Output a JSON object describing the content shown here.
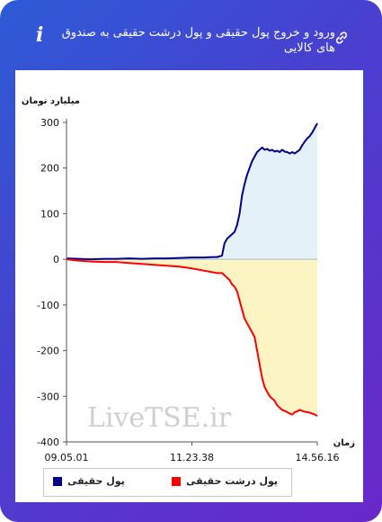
{
  "header": {
    "title": "ورود و خروج پول حقیقی و پول درشت حقیقی به صندوق های کالایی",
    "info_icon": "info-icon",
    "link_icon": "link-icon"
  },
  "colors": {
    "real_money": "#00008b",
    "big_real_money": "#ff0000",
    "positive_fill": "#e4f1f8",
    "negative_fill": "#fdf4c4",
    "frame_gradient": [
      "#2d5bd6",
      "#6a27c9"
    ]
  },
  "chart_data": {
    "type": "area",
    "ylabel": "میلیارد تومان",
    "xlabel": "زمان",
    "ylim": [
      -400,
      300
    ],
    "y_ticks": [
      300,
      200,
      100,
      0,
      -100,
      -200,
      -300,
      -400
    ],
    "x_tick_labels": [
      "09.05.01",
      "11.23.38",
      "14.56.16"
    ],
    "grid": false,
    "legend_position": "bottom",
    "watermark": "LiveTSE.ir",
    "x_index": [
      0,
      5,
      10,
      15,
      20,
      25,
      30,
      35,
      40,
      45,
      50,
      55,
      58,
      60,
      62,
      63,
      64,
      65,
      66,
      67,
      68,
      69,
      70,
      71,
      72,
      73,
      74,
      75,
      76,
      77,
      78,
      79,
      80,
      81,
      82,
      83,
      84,
      85,
      86,
      87,
      88,
      89,
      90,
      91,
      92,
      93,
      94,
      95,
      96,
      97,
      98,
      99,
      100
    ],
    "series": [
      {
        "name": "پول حقیقی",
        "values": [
          2,
          1,
          0,
          1,
          1,
          2,
          1,
          2,
          2,
          3,
          4,
          4,
          5,
          5,
          8,
          35,
          45,
          50,
          55,
          60,
          75,
          100,
          140,
          165,
          185,
          200,
          215,
          225,
          235,
          240,
          245,
          240,
          242,
          238,
          240,
          236,
          238,
          235,
          240,
          236,
          235,
          232,
          235,
          232,
          236,
          240,
          250,
          258,
          265,
          270,
          278,
          288,
          298
        ]
      },
      {
        "name": "پول درشت حقیقی",
        "values": [
          0,
          -3,
          -5,
          -6,
          -6,
          -8,
          -10,
          -12,
          -14,
          -16,
          -20,
          -25,
          -28,
          -30,
          -30,
          -35,
          -40,
          -45,
          -55,
          -60,
          -70,
          -90,
          -110,
          -130,
          -140,
          -150,
          -160,
          -170,
          -200,
          -230,
          -260,
          -280,
          -290,
          -300,
          -305,
          -310,
          -320,
          -325,
          -330,
          -332,
          -335,
          -338,
          -340,
          -335,
          -333,
          -330,
          -332,
          -334,
          -335,
          -336,
          -338,
          -340,
          -343
        ]
      }
    ]
  },
  "legend": {
    "items": [
      {
        "label": "پول حقیقی",
        "color": "#00008b"
      },
      {
        "label": "پول درشت حقیقی",
        "color": "#ff0000"
      }
    ]
  }
}
